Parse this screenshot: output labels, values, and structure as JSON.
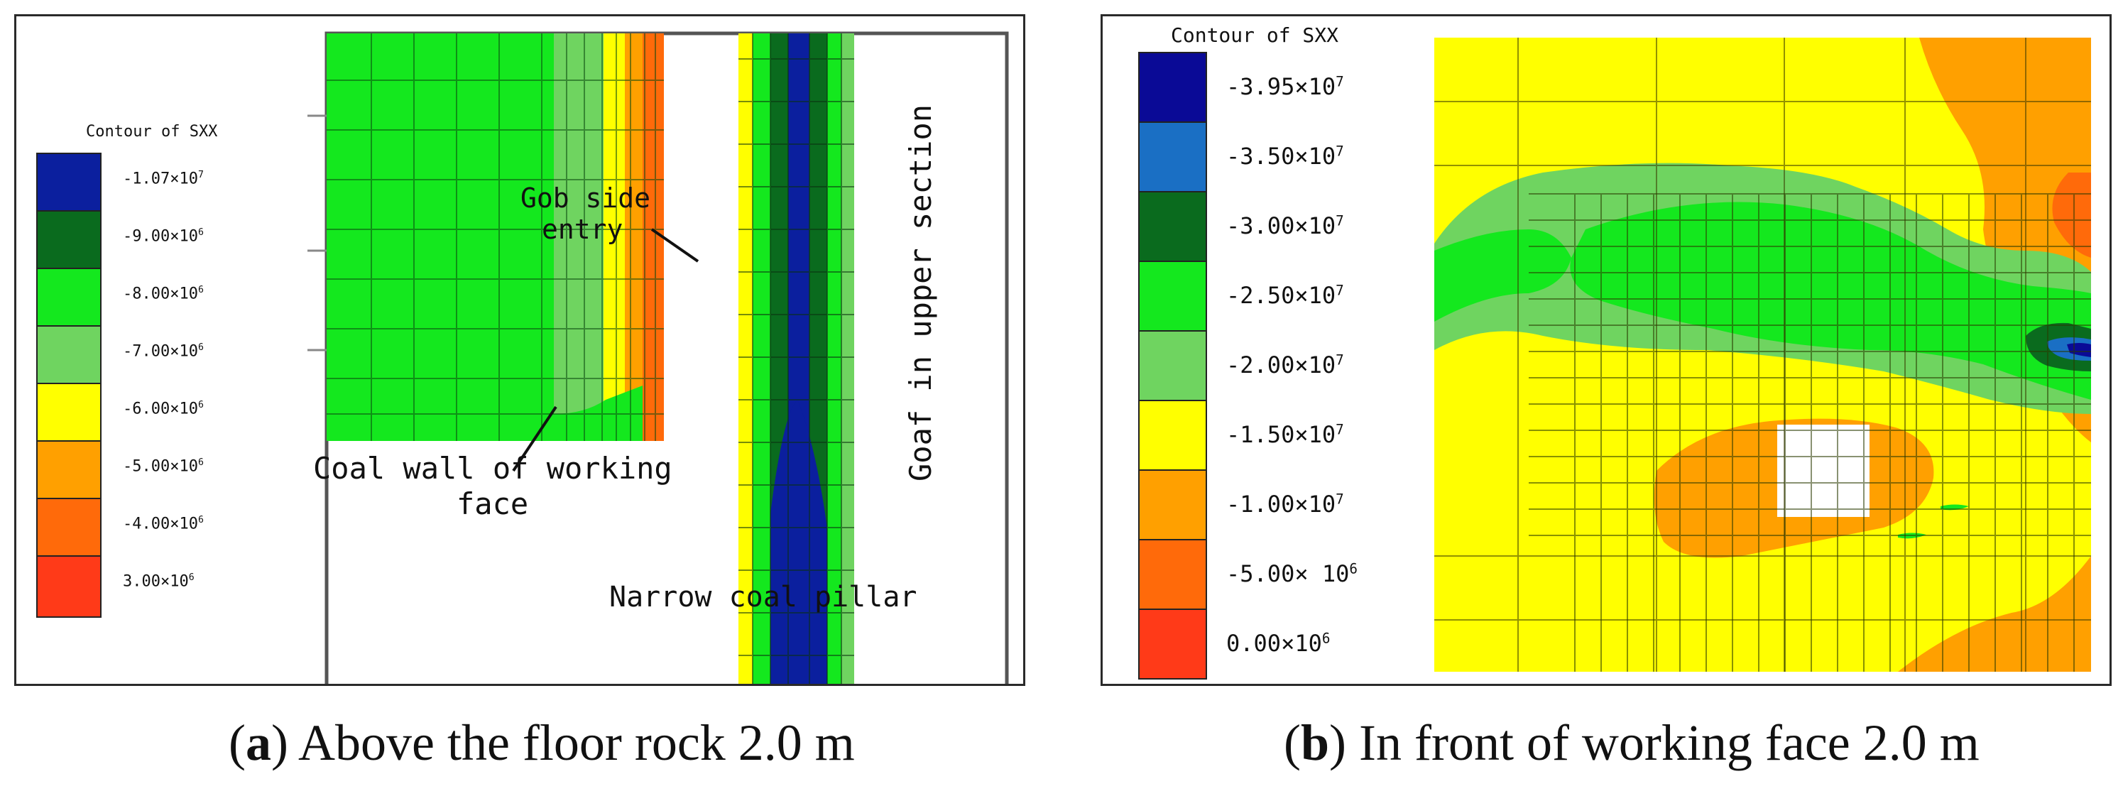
{
  "panel_a": {
    "legend": {
      "title": "Contour of SXX",
      "entries": [
        {
          "color": "#0b1f9e",
          "mantissa": "-1.07×10",
          "exponent": "7"
        },
        {
          "color": "#0a6b1e",
          "mantissa": "-9.00×10",
          "exponent": "6"
        },
        {
          "color": "#14e81e",
          "mantissa": "-8.00×10",
          "exponent": "6"
        },
        {
          "color": "#6fd460",
          "mantissa": "-7.00×10",
          "exponent": "6"
        },
        {
          "color": "#ffff00",
          "mantissa": "-6.00×10",
          "exponent": "6"
        },
        {
          "color": "#ffa000",
          "mantissa": "-5.00×10",
          "exponent": "6"
        },
        {
          "color": "#ff6a0a",
          "mantissa": "-4.00×10",
          "exponent": "6"
        },
        {
          "color": "#ff3a18",
          "mantissa": "3.00×10",
          "exponent": "6"
        }
      ]
    },
    "labels": {
      "gob_line1": "Gob side",
      "gob_line2": "entry",
      "coal_wall_line1": "Coal wall of working",
      "coal_wall_line2": "face",
      "goaf": "Goaf in upper section",
      "pillar": "Narrow coal pillar"
    },
    "caption": {
      "letter": "a",
      "text": " Above the floor rock 2.0 m"
    }
  },
  "panel_b": {
    "legend": {
      "title": "Contour of SXX",
      "entries": [
        {
          "color": "#0a0a96",
          "mantissa": "-3.95×10",
          "exponent": "7"
        },
        {
          "color": "#1a6fc4",
          "mantissa": "-3.50×10",
          "exponent": "7"
        },
        {
          "color": "#0a6b1e",
          "mantissa": "-3.00×10",
          "exponent": "7"
        },
        {
          "color": "#14e81e",
          "mantissa": "-2.50×10",
          "exponent": "7"
        },
        {
          "color": "#6fd460",
          "mantissa": "-2.00×10",
          "exponent": "7"
        },
        {
          "color": "#ffff00",
          "mantissa": "-1.50×10",
          "exponent": "7"
        },
        {
          "color": "#ffa000",
          "mantissa": "-1.00×10",
          "exponent": "7"
        },
        {
          "color": "#ff6a0a",
          "mantissa": "-5.00× 10",
          "exponent": "6"
        },
        {
          "color": "#ff3a18",
          "mantissa": "0.00×10",
          "exponent": "6"
        }
      ]
    },
    "caption": {
      "letter": "b",
      "text": " In front of working face 2.0 m"
    }
  },
  "colors": {
    "yellow": "#ffff00",
    "green": "#14e81e",
    "lightgreen": "#6fd460",
    "darkgreen": "#0a6b1e",
    "blue": "#0b1f9e",
    "midblue": "#1a6fc4",
    "orange": "#ffa000",
    "darkorange": "#ff6a0a",
    "red": "#ff3a18"
  }
}
